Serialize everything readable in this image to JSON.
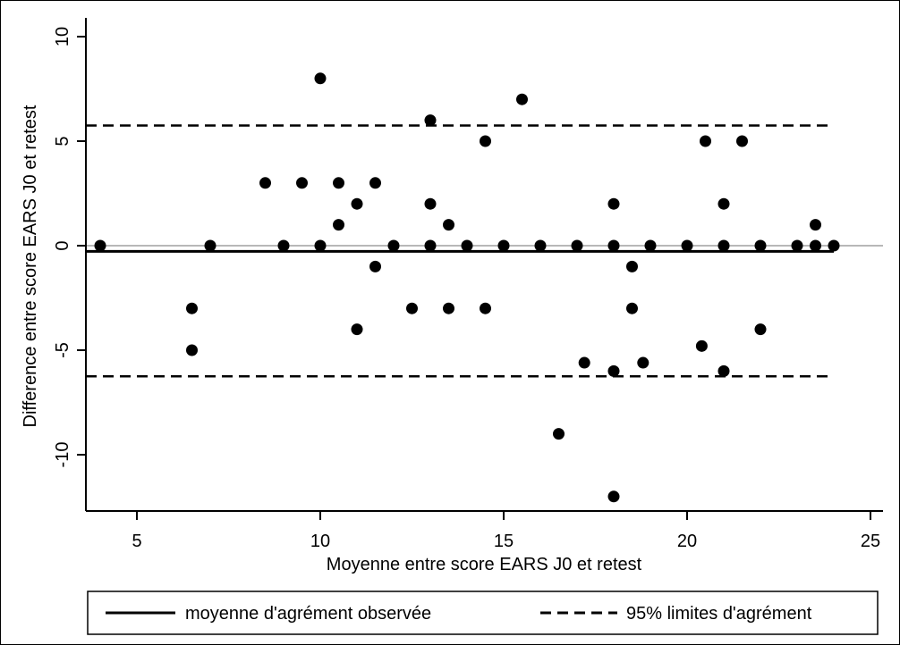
{
  "chart_data": {
    "type": "scatter",
    "title": "",
    "xlabel": "Moyenne entre score EARS J0 et retest",
    "ylabel": "Difference entre score EARS J0 et retest",
    "xlim": [
      4,
      24
    ],
    "ylim": [
      -12.5,
      10
    ],
    "xticks": [
      5,
      10,
      15,
      20,
      25
    ],
    "yticks": [
      10,
      5,
      0,
      -5,
      -10
    ],
    "points": [
      [
        4,
        0
      ],
      [
        6.5,
        -3
      ],
      [
        6.5,
        -5
      ],
      [
        7,
        0
      ],
      [
        8.5,
        3
      ],
      [
        9,
        0
      ],
      [
        9.5,
        3
      ],
      [
        10,
        8
      ],
      [
        10,
        0
      ],
      [
        10.5,
        3
      ],
      [
        10.5,
        1
      ],
      [
        11,
        2
      ],
      [
        11,
        -4
      ],
      [
        11.5,
        3
      ],
      [
        11.5,
        -1
      ],
      [
        12,
        0
      ],
      [
        12.5,
        -3
      ],
      [
        13,
        6
      ],
      [
        13,
        2
      ],
      [
        13,
        0
      ],
      [
        13.5,
        1
      ],
      [
        13.5,
        -3
      ],
      [
        14,
        0
      ],
      [
        14.5,
        5
      ],
      [
        14.5,
        -3
      ],
      [
        15,
        0
      ],
      [
        15.5,
        7
      ],
      [
        16,
        0
      ],
      [
        16.5,
        -9
      ],
      [
        17,
        0
      ],
      [
        17.2,
        -5.6
      ],
      [
        18,
        2
      ],
      [
        18,
        0
      ],
      [
        18,
        -6
      ],
      [
        18,
        -12
      ],
      [
        18.5,
        -1
      ],
      [
        18.5,
        -3
      ],
      [
        18.8,
        -5.6
      ],
      [
        19,
        0
      ],
      [
        20,
        0
      ],
      [
        20.4,
        -4.8
      ],
      [
        20.5,
        5
      ],
      [
        21,
        2
      ],
      [
        21,
        0
      ],
      [
        21,
        -6
      ],
      [
        21.5,
        5
      ],
      [
        22,
        0
      ],
      [
        22,
        -4
      ],
      [
        23,
        0
      ],
      [
        23.5,
        1
      ],
      [
        23.5,
        0
      ],
      [
        24,
        0
      ]
    ],
    "reference_lines": {
      "zero": 0,
      "mean": -0.27,
      "upper_limit": 5.75,
      "lower_limit": -6.25
    },
    "grid": false,
    "legend_position": "bottom",
    "legend": [
      {
        "label": "moyenne d'agrément observée",
        "style": "solid"
      },
      {
        "label": "95% limites d'agrément",
        "style": "dashed"
      }
    ],
    "colors": {
      "points": "#000000",
      "zero_line": "#a0a0a0",
      "lines": "#000000"
    }
  }
}
